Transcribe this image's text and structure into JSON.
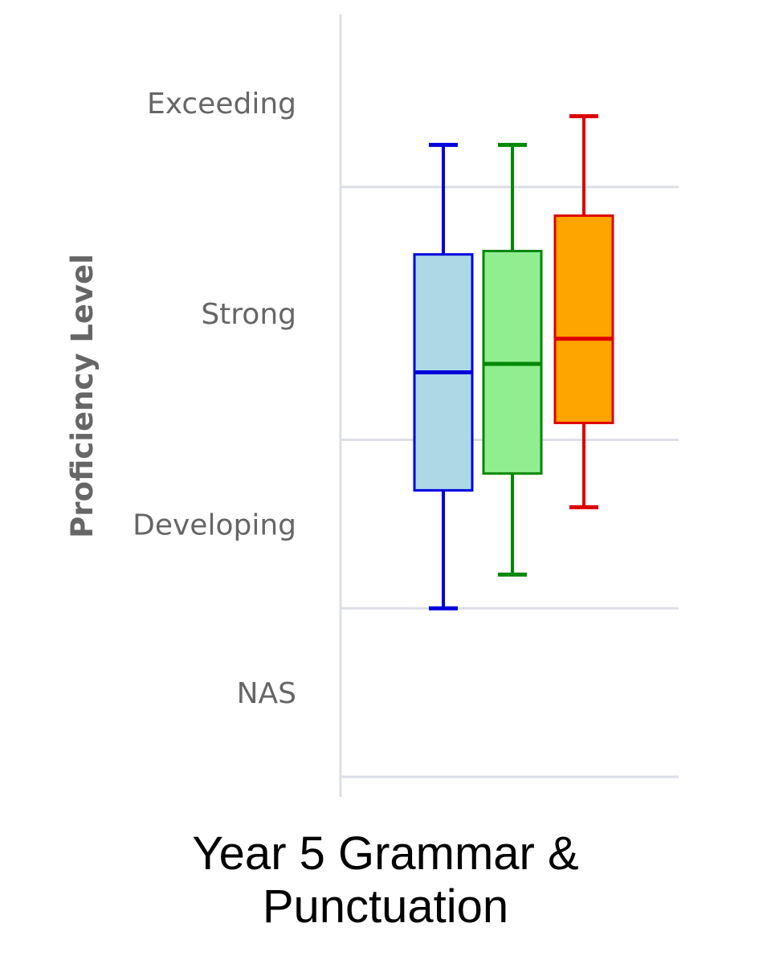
{
  "chart_data": {
    "type": "boxplot",
    "title": "Year 5 Grammar & Punctuation",
    "ylabel": "Proficiency Level",
    "y_categories": [
      "NAS",
      "Developing",
      "Strong",
      "Exceeding"
    ],
    "y_bands": [
      [
        0,
        1
      ],
      [
        1,
        2
      ],
      [
        2,
        3.5
      ],
      [
        3.5,
        4.5
      ]
    ],
    "ylim": [
      0,
      4.5
    ],
    "grid": true,
    "series": [
      {
        "color": "#0000dd",
        "fill": "#add8e6",
        "min": 1.0,
        "q1": 1.7,
        "median": 2.4,
        "q3": 3.1,
        "max": 3.75
      },
      {
        "color": "#008800",
        "fill": "#90ee90",
        "min": 1.2,
        "q1": 1.8,
        "median": 2.45,
        "q3": 3.12,
        "max": 3.75
      },
      {
        "color": "#dd0000",
        "fill": "#ffa500",
        "min": 1.6,
        "q1": 2.1,
        "median": 2.6,
        "q3": 3.33,
        "max": 3.92
      }
    ]
  }
}
